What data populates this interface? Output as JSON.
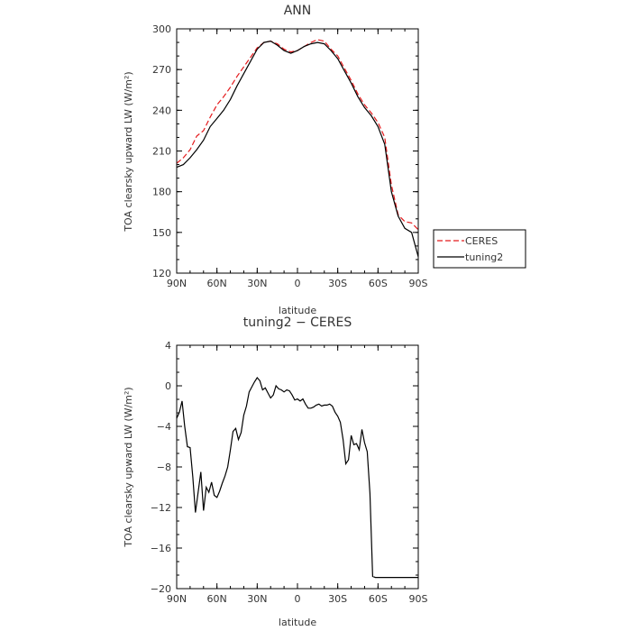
{
  "chart_data": [
    {
      "type": "line",
      "title": "ANN",
      "xlabel": "latitude",
      "ylabel": "TOA clearsky upward LW (W/m²)",
      "xlim": [
        90,
        -90
      ],
      "ylim": [
        120,
        300
      ],
      "x_ticks": [
        {
          "value": 90,
          "label": "90N"
        },
        {
          "value": 60,
          "label": "60N"
        },
        {
          "value": 30,
          "label": "30N"
        },
        {
          "value": 0,
          "label": "0"
        },
        {
          "value": -30,
          "label": "30S"
        },
        {
          "value": -60,
          "label": "60S"
        },
        {
          "value": -90,
          "label": "90S"
        }
      ],
      "y_ticks": [
        120,
        150,
        180,
        210,
        240,
        270,
        300
      ],
      "legend": "right",
      "series": [
        {
          "name": "CERES",
          "style": "dashed",
          "color": "#e41a1c",
          "x": [
            90,
            85,
            80,
            75,
            70,
            65,
            60,
            55,
            50,
            45,
            40,
            35,
            30,
            25,
            20,
            15,
            10,
            5,
            0,
            -5,
            -10,
            -15,
            -20,
            -25,
            -30,
            -35,
            -40,
            -45,
            -50,
            -55,
            -60,
            -65,
            -70,
            -75,
            -80,
            -85,
            -90
          ],
          "values": [
            201,
            205,
            211,
            221,
            225,
            235,
            244,
            250,
            257,
            265,
            272,
            279,
            286,
            290,
            291,
            289,
            285,
            283,
            284,
            287,
            290,
            292,
            291,
            285,
            280,
            271,
            262,
            252,
            244,
            238,
            231,
            220,
            185,
            163,
            158,
            157,
            152
          ]
        },
        {
          "name": "tuning2",
          "style": "solid",
          "color": "#000000",
          "x": [
            90,
            85,
            80,
            75,
            70,
            65,
            60,
            55,
            50,
            45,
            40,
            35,
            30,
            25,
            20,
            15,
            10,
            5,
            0,
            -5,
            -10,
            -15,
            -20,
            -25,
            -30,
            -35,
            -40,
            -45,
            -50,
            -55,
            -60,
            -65,
            -70,
            -75,
            -80,
            -85,
            -90
          ],
          "values": [
            198,
            200,
            205,
            211,
            218,
            228,
            234,
            240,
            248,
            258,
            267,
            276,
            285,
            290,
            291,
            288,
            284,
            282,
            284,
            287,
            289,
            290,
            289,
            284,
            278,
            269,
            260,
            250,
            242,
            236,
            228,
            215,
            180,
            162,
            153,
            150,
            132
          ]
        }
      ]
    },
    {
      "type": "line",
      "title": "tuning2 − CERES",
      "xlabel": "latitude",
      "ylabel": "TOA clearsky upward LW (W/m²)",
      "xlim": [
        90,
        -90
      ],
      "ylim": [
        -20,
        4
      ],
      "x_ticks": [
        {
          "value": 90,
          "label": "90N"
        },
        {
          "value": 60,
          "label": "60N"
        },
        {
          "value": 30,
          "label": "30N"
        },
        {
          "value": 0,
          "label": "0"
        },
        {
          "value": -30,
          "label": "30S"
        },
        {
          "value": -60,
          "label": "60S"
        },
        {
          "value": -90,
          "label": "90S"
        }
      ],
      "y_ticks": [
        4,
        0,
        -4,
        -8,
        -12,
        -16,
        -20
      ],
      "series": [
        {
          "name": "",
          "style": "solid",
          "color": "#000000",
          "x": [
            90,
            88,
            86,
            84,
            82,
            80,
            78,
            76,
            74,
            72,
            70,
            68,
            66,
            64,
            62,
            60,
            58,
            56,
            54,
            52,
            50,
            48,
            46,
            44,
            42,
            40,
            38,
            36,
            34,
            32,
            30,
            28,
            26,
            24,
            22,
            20,
            18,
            16,
            14,
            12,
            10,
            8,
            6,
            4,
            2,
            0,
            -2,
            -4,
            -6,
            -8,
            -10,
            -12,
            -14,
            -16,
            -18,
            -20,
            -22,
            -24,
            -26,
            -28,
            -30,
            -32,
            -34,
            -36,
            -38,
            -40,
            -42,
            -44,
            -46,
            -48,
            -50,
            -52,
            -54,
            -56,
            -58,
            -60,
            -62,
            -64,
            -66,
            -68,
            -70,
            -72,
            -74,
            -76,
            -78,
            -80,
            -82,
            -84,
            -86,
            -88,
            -90
          ],
          "values": [
            -3.2,
            -2.6,
            -1.5,
            -4.0,
            -6.0,
            -6.1,
            -9.0,
            -12.5,
            -10.5,
            -8.5,
            -12.3,
            -10.0,
            -10.5,
            -9.5,
            -10.8,
            -11.0,
            -10.4,
            -9.6,
            -8.9,
            -8.0,
            -6.3,
            -4.5,
            -4.2,
            -5.3,
            -4.6,
            -2.9,
            -2.0,
            -0.6,
            -0.1,
            0.4,
            0.8,
            0.5,
            -0.4,
            -0.2,
            -0.7,
            -1.2,
            -0.9,
            0.0,
            -0.3,
            -0.4,
            -0.6,
            -0.4,
            -0.5,
            -0.9,
            -1.4,
            -1.3,
            -1.5,
            -1.3,
            -1.8,
            -2.2,
            -2.2,
            -2.1,
            -1.9,
            -1.8,
            -2.0,
            -1.9,
            -1.9,
            -1.8,
            -2.0,
            -2.6,
            -3.0,
            -3.6,
            -5.3,
            -7.7,
            -7.3,
            -4.9,
            -5.8,
            -5.7,
            -6.3,
            -4.3,
            -5.6,
            -6.5,
            -10.6,
            -18.8,
            -18.9,
            -18.9,
            -18.9,
            -18.9,
            -18.9,
            -18.9,
            -18.9,
            -18.9,
            -18.9,
            -18.9,
            -18.9,
            -18.9,
            -18.9,
            -18.9,
            -18.9,
            -18.9,
            -18.9
          ]
        }
      ]
    }
  ]
}
